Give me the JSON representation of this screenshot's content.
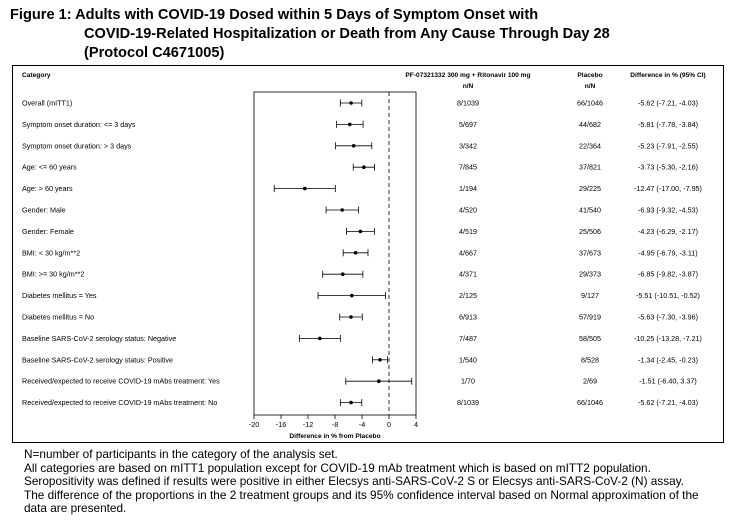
{
  "figure": {
    "title_line1": "Figure 1: Adults with COVID-19 Dosed within 5 Days of Symptom Onset with",
    "title_line2": "COVID-19-Related Hospitalization or Death from Any Cause Through Day 28",
    "title_line3": "(Protocol C4671005)"
  },
  "chart_data": {
    "type": "forest",
    "columns": {
      "category": "Category",
      "treatment_line1": "PF-07321332 300 mg + Ritonavir 100 mg",
      "treatment_line2": "n/N",
      "placebo_line1": "Placebo",
      "placebo_line2": "n/N",
      "difference": "Difference in % (95% CI)"
    },
    "xlabel": "Difference in % from Placebo",
    "xlim": [
      -20,
      4
    ],
    "xticks": [
      "-20",
      "-16",
      "-12",
      "-8",
      "-4",
      "0",
      "4"
    ],
    "rows": [
      {
        "label": "Overall (mITT1)",
        "treatment": "8/1039",
        "placebo": "66/1046",
        "diff_text": "-5.62 (-7.21, -4.03)",
        "est": -5.62,
        "lo": -7.21,
        "hi": -4.03
      },
      {
        "label": "Symptom onset duration: <= 3 days",
        "treatment": "5/697",
        "placebo": "44/682",
        "diff_text": "-5.81 (-7.78, -3.84)",
        "est": -5.81,
        "lo": -7.78,
        "hi": -3.84
      },
      {
        "label": "Symptom onset duration: > 3 days",
        "treatment": "3/342",
        "placebo": "22/364",
        "diff_text": "-5.23 (-7.91, -2.55)",
        "est": -5.23,
        "lo": -7.91,
        "hi": -2.55
      },
      {
        "label": "Age: <= 60 years",
        "treatment": "7/845",
        "placebo": "37/821",
        "diff_text": "-3.73 (-5.30, -2.16)",
        "est": -3.73,
        "lo": -5.3,
        "hi": -2.16
      },
      {
        "label": "Age: > 60 years",
        "treatment": "1/194",
        "placebo": "29/225",
        "diff_text": "-12.47 (-17.00, -7.95)",
        "est": -12.47,
        "lo": -17.0,
        "hi": -7.95
      },
      {
        "label": "Gender: Male",
        "treatment": "4/520",
        "placebo": "41/540",
        "diff_text": "-6.93 (-9.32, -4.53)",
        "est": -6.93,
        "lo": -9.32,
        "hi": -4.53
      },
      {
        "label": "Gender: Female",
        "treatment": "4/519",
        "placebo": "25/506",
        "diff_text": "-4.23 (-6.29, -2.17)",
        "est": -4.23,
        "lo": -6.29,
        "hi": -2.17
      },
      {
        "label": "BMI: < 30 kg/m**2",
        "treatment": "4/667",
        "placebo": "37/673",
        "diff_text": "-4.95 (-6.79, -3.11)",
        "est": -4.95,
        "lo": -6.79,
        "hi": -3.11
      },
      {
        "label": "BMI: >= 30 kg/m**2",
        "treatment": "4/371",
        "placebo": "29/373",
        "diff_text": "-6.85 (-9.82, -3.87)",
        "est": -6.85,
        "lo": -9.82,
        "hi": -3.87
      },
      {
        "label": "Diabetes mellitus = Yes",
        "treatment": "2/125",
        "placebo": "9/127",
        "diff_text": "-5.51 (-10.51, -0.52)",
        "est": -5.51,
        "lo": -10.51,
        "hi": -0.52
      },
      {
        "label": "Diabetes mellitus = No",
        "treatment": "6/913",
        "placebo": "57/919",
        "diff_text": "-5.63 (-7.30, -3.96)",
        "est": -5.63,
        "lo": -7.3,
        "hi": -3.96
      },
      {
        "label": "Baseline SARS-CoV-2 serology status: Negative",
        "treatment": "7/487",
        "placebo": "58/505",
        "diff_text": "-10.25 (-13.28, -7.21)",
        "est": -10.25,
        "lo": -13.28,
        "hi": -7.21
      },
      {
        "label": "Baseline SARS-CoV-2 serology status: Positive",
        "treatment": "1/540",
        "placebo": "8/528",
        "diff_text": "-1.34 (-2.45, -0.23)",
        "est": -1.34,
        "lo": -2.45,
        "hi": -0.23
      },
      {
        "label": "Received/expected to receive COVID-19 mAbs treatment: Yes",
        "treatment": "1/70",
        "placebo": "2/69",
        "diff_text": "-1.51 (-6.40, 3.37)",
        "est": -1.51,
        "lo": -6.4,
        "hi": 3.37
      },
      {
        "label": "Received/expected to receive COVID-19 mAbs treatment: No",
        "treatment": "8/1039",
        "placebo": "66/1046",
        "diff_text": "-5.62 (-7.21, -4.03)",
        "est": -5.62,
        "lo": -7.21,
        "hi": -4.03
      }
    ]
  },
  "footnotes": [
    "N=number of participants in the category of the analysis set.",
    "All categories are based on mITT1 population except for COVID-19 mAb treatment which is based on mITT2 population.",
    "Seropositivity was defined if results were positive in either Elecsys anti-SARS-CoV-2 S or Elecsys anti-SARS-CoV-2 (N) assay.",
    "The difference of the proportions in the 2 treatment groups and its 95% confidence interval based on Normal approximation of the",
    "data are presented."
  ]
}
